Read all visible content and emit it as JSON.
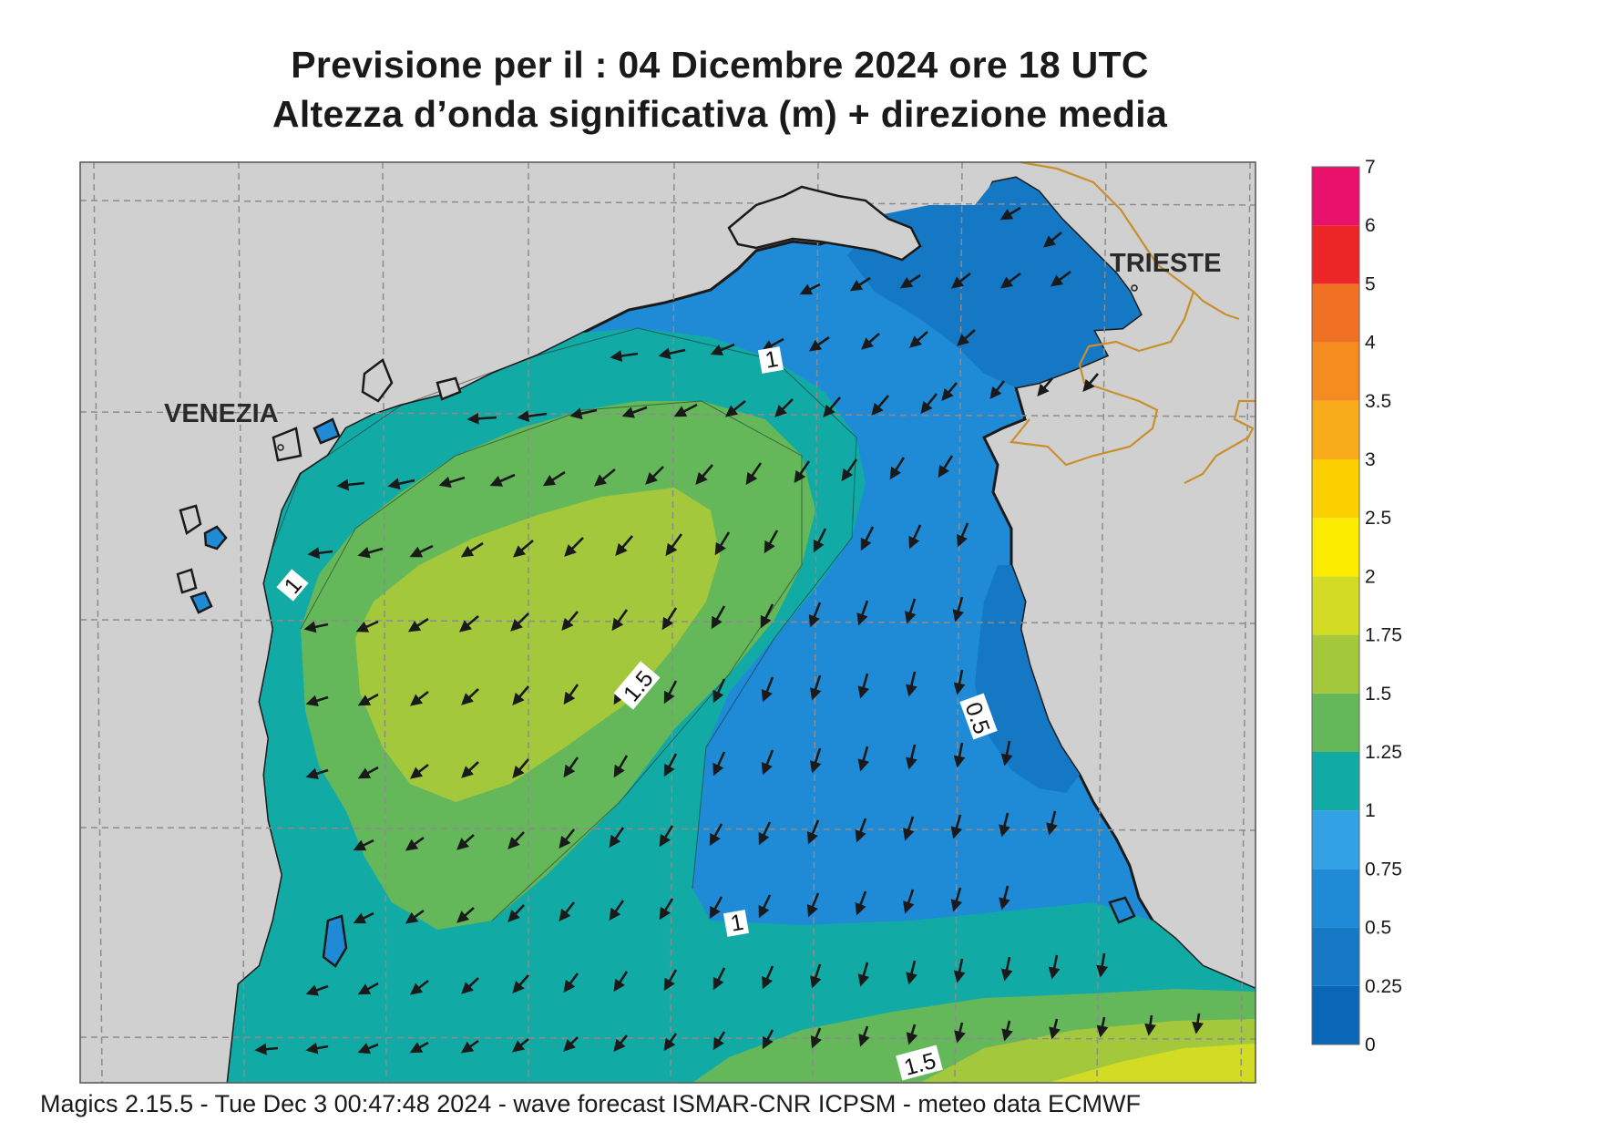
{
  "header": {
    "title_line1": "Previsione per il  :  04 Dicembre  2024   ore 18 UTC",
    "title_line2": "Altezza d’onda significativa (m) + direzione media"
  },
  "footer": {
    "credits": "Magics 2.15.5 - Tue Dec  3 00:47:48 2024 - wave forecast  ISMAR-CNR  ICPSM - meteo data   ECMWF"
  },
  "map": {
    "cities": [
      "VENEZIA",
      "TRIESTE"
    ],
    "contour_labels": [
      "1",
      "1",
      "1",
      "1.5",
      "1.5",
      "0.5"
    ],
    "colors": {
      "land": "#d0d0d0",
      "coast": "#1a1a1a",
      "border": "#c8902c",
      "grid": "#8c8c8c",
      "arrows": "#1a1a1a"
    },
    "arrow_direction": "south-west"
  },
  "legend": {
    "labels": [
      "0",
      "0.25",
      "0.5",
      "0.75",
      "1",
      "1.25",
      "1.5",
      "1.75",
      "2",
      "2.5",
      "3",
      "3.5",
      "4",
      "5",
      "6",
      "7"
    ],
    "colors": [
      "#0a66b6",
      "#1478c4",
      "#1f8bd6",
      "#32a2e4",
      "#12aaa4",
      "#64b85a",
      "#a4c83c",
      "#d2dc24",
      "#fcec00",
      "#fcd000",
      "#f8ac1c",
      "#f48c20",
      "#f07024",
      "#ec2626",
      "#e8126c"
    ]
  }
}
